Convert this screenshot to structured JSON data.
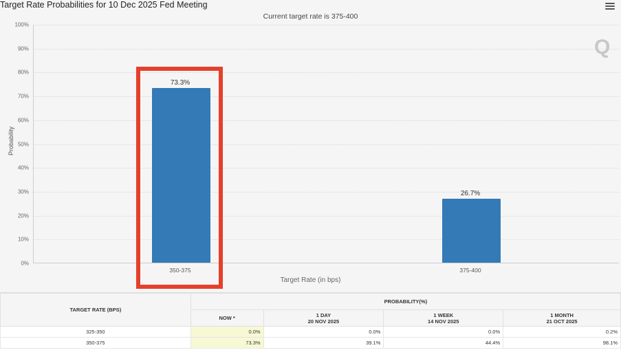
{
  "header": {
    "title": "Target Rate Probabilities for 10 Dec 2025 Fed Meeting",
    "subtitle": "Current target rate is 375-400",
    "menu_icon": "hamburger-menu-icon",
    "watermark": "Q"
  },
  "chart_data": {
    "type": "bar",
    "title": "Target Rate Probabilities for 10 Dec 2025 Fed Meeting",
    "subtitle": "Current target rate is 375-400",
    "categories": [
      "350-375",
      "375-400"
    ],
    "values": [
      73.3,
      26.7
    ],
    "data_labels": [
      "73.3%",
      "26.7%"
    ],
    "xlabel": "Target Rate (in bps)",
    "ylabel": "Probability",
    "ylim": [
      0,
      100
    ],
    "yticks": [
      "0%",
      "10%",
      "20%",
      "30%",
      "40%",
      "50%",
      "60%",
      "70%",
      "80%",
      "90%",
      "100%"
    ],
    "grid": true,
    "bar_color": "#337ab7",
    "highlight": {
      "category": "350-375",
      "color": "#e5402b"
    }
  },
  "table": {
    "rate_header": "TARGET RATE (BPS)",
    "prob_header": "PROBABILITY(%)",
    "columns": [
      {
        "line1": "NOW *",
        "line2": ""
      },
      {
        "line1": "1 DAY",
        "line2": "20 NOV 2025"
      },
      {
        "line1": "1 WEEK",
        "line2": "14 NOV 2025"
      },
      {
        "line1": "1 MONTH",
        "line2": "21 OCT 2025"
      }
    ],
    "rows": [
      {
        "rate": "325-350",
        "values": [
          "0.0%",
          "0.0%",
          "0.0%",
          "0.2%"
        ]
      },
      {
        "rate": "350-375",
        "values": [
          "73.3%",
          "39.1%",
          "44.4%",
          "98.1%"
        ]
      }
    ]
  }
}
